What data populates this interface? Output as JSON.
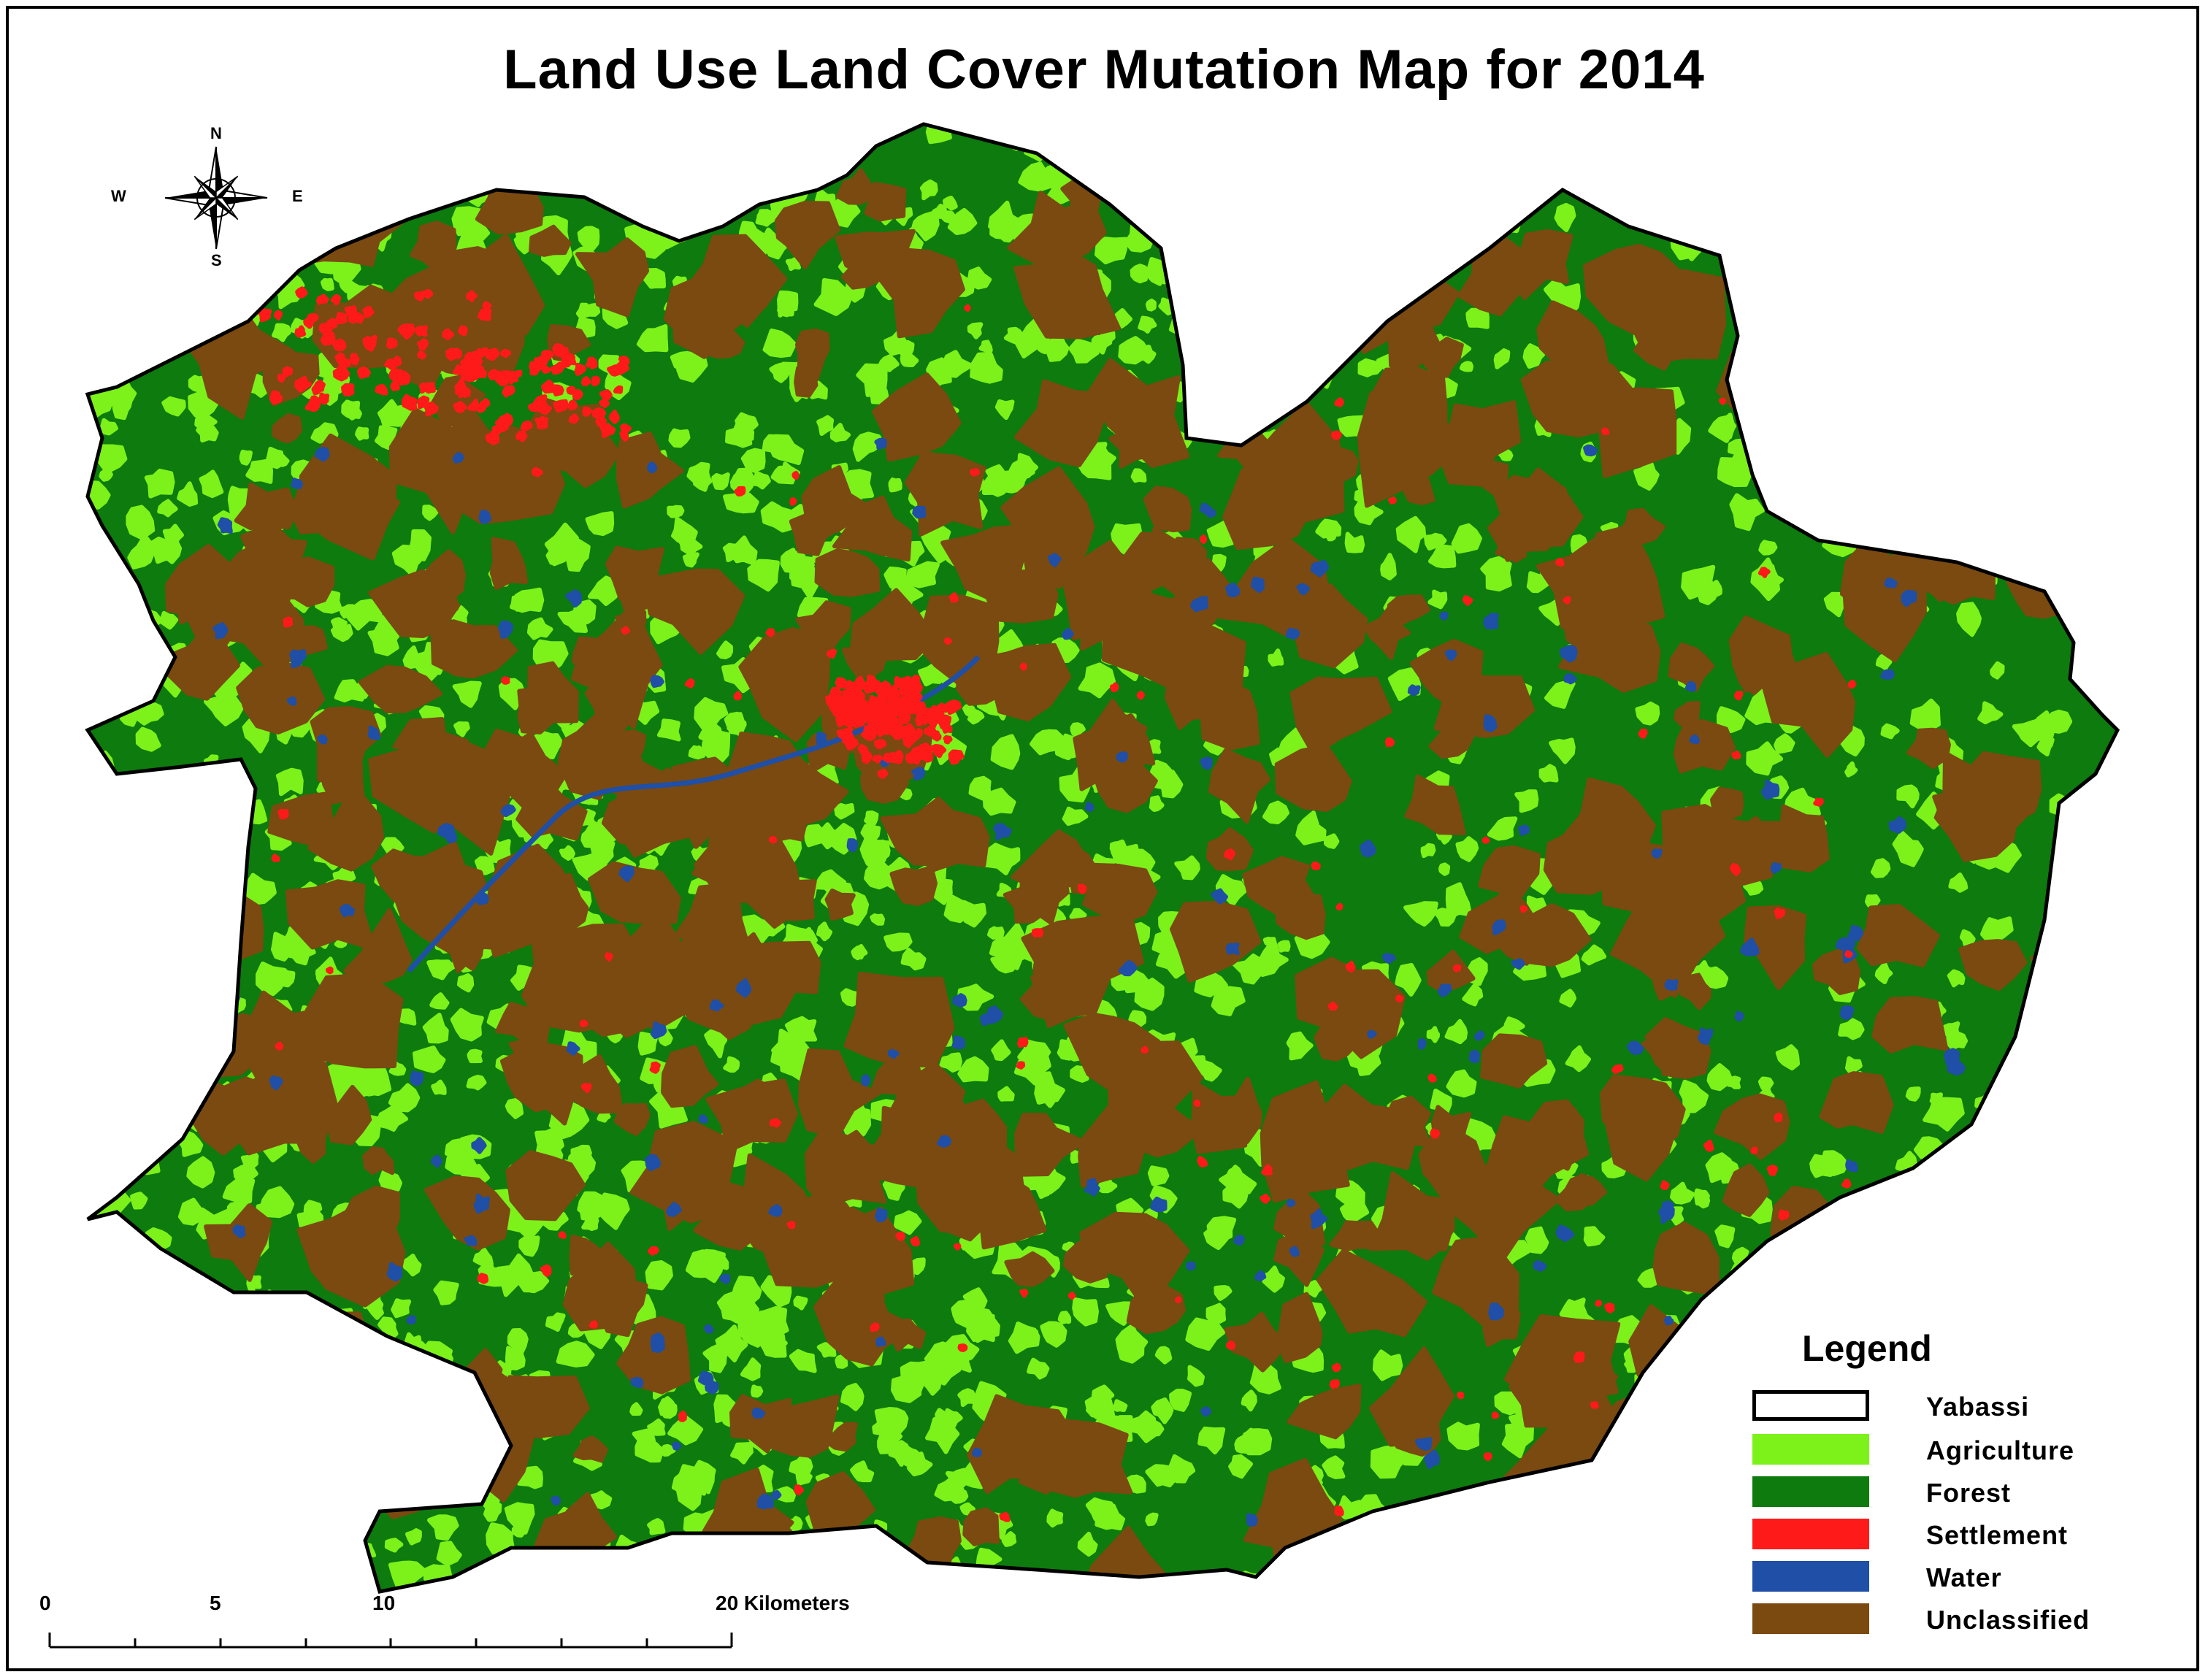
{
  "title": "Land Use Land Cover Mutation Map for 2014",
  "compass": {
    "n": "N",
    "s": "S",
    "e": "E",
    "w": "W"
  },
  "legend": {
    "title": "Legend",
    "items": [
      {
        "label": "Yabassi",
        "color": "#ffffff",
        "outline": true
      },
      {
        "label": "Agriculture",
        "color": "#7cf21a"
      },
      {
        "label": "Forest",
        "color": "#0d7b0d"
      },
      {
        "label": "Settlement",
        "color": "#ff1a1a"
      },
      {
        "label": "Water",
        "color": "#1f4fa6"
      },
      {
        "label": "Unclassified",
        "color": "#7a4a10"
      }
    ]
  },
  "scale": {
    "ticks": [
      "0",
      "5",
      "10",
      "20 Kilometers"
    ],
    "values_km": [
      0,
      5,
      10,
      20
    ]
  },
  "colors": {
    "forest": "#0d7b0d",
    "agriculture": "#7cf21a",
    "unclassified": "#7a4a10",
    "settlement": "#ff1a1a",
    "water": "#1f4fa6",
    "boundary": "#000000"
  }
}
